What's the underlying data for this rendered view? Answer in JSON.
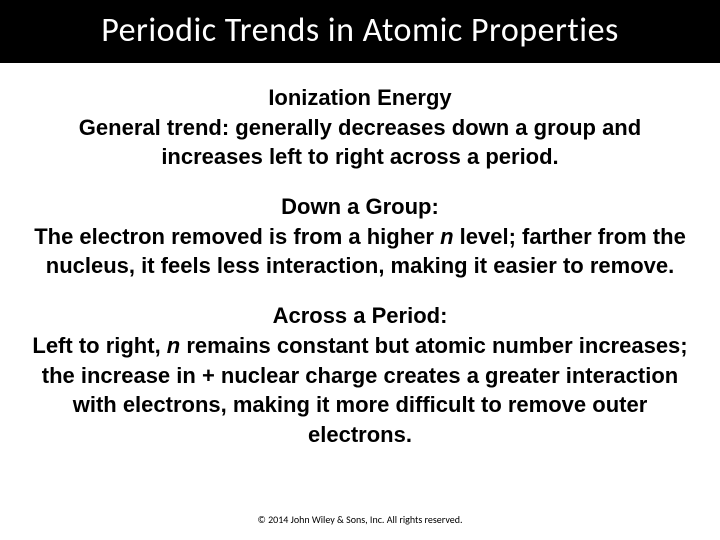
{
  "title": "Periodic Trends in Atomic Properties",
  "sections": {
    "ionization": {
      "heading": "Ionization Energy",
      "trend_label": "General trend:",
      "trend_text": " generally decreases down a group and increases left to right across a period."
    },
    "down_group": {
      "heading": "Down a Group:",
      "line1a": "The electron removed is from a higher ",
      "n1": "n",
      "line1b": " level; farther from the nucleus, it feels less interaction, making it easier to remove."
    },
    "across_period": {
      "heading": "Across a Period:",
      "line1a": "Left to right, ",
      "n1": "n",
      "line1b": " remains constant but atomic number increases; the increase in + nuclear charge creates a greater interaction with electrons, making it more difficult to remove outer electrons."
    }
  },
  "copyright": "© 2014 John Wiley & Sons, Inc. All rights reserved."
}
